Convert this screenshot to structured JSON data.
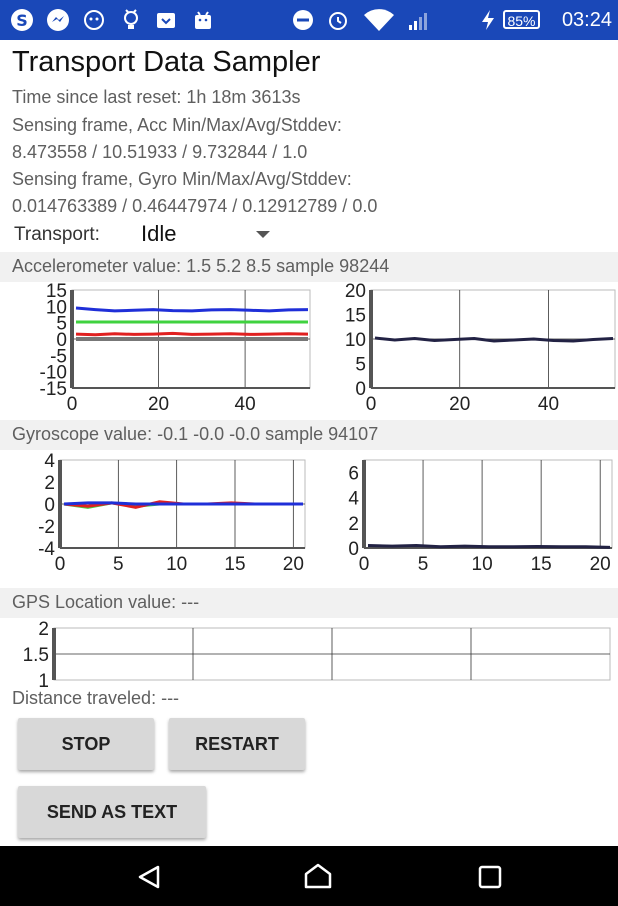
{
  "status_bar": {
    "battery": "85%",
    "time": "03:24",
    "icons": [
      "skype-icon",
      "messenger-icon",
      "cat-icon",
      "lightbulb-icon",
      "tray-icon",
      "bag-icon",
      "dnd-icon",
      "alarm-icon",
      "wifi-icon",
      "signal-icon",
      "charging-icon"
    ]
  },
  "app": {
    "title": "Transport Data Sampler",
    "time_since_reset": "Time since last reset: 1h 18m 3613s",
    "acc_header": "Sensing frame, Acc Min/Max/Avg/Stddev:",
    "acc_stats": "8.473558 /  10.51933 /  9.732844 /  1.0",
    "gyro_header": "Sensing frame, Gyro Min/Max/Avg/Stddev:",
    "gyro_stats": "0.014763389 / 0.46447974 / 0.12912789 / 0.0",
    "transport_label": "Transport:",
    "transport_value": "Idle",
    "acc_value": "Accelerometer value: 1.5 5.2 8.5   sample 98244",
    "gyro_value": "Gyroscope value: -0.1 -0.0 -0.0   sample 94107",
    "gps_value": "GPS Location value: ---",
    "distance": "Distance traveled: ---"
  },
  "buttons": {
    "stop": "STOP",
    "restart": "RESTART",
    "send": "SEND AS TEXT"
  },
  "chart_data": [
    {
      "type": "line",
      "name": "accelerometer-axes",
      "xlim": [
        0,
        55
      ],
      "ylim": [
        -15,
        15
      ],
      "xticks": [
        "0",
        "20",
        "40"
      ],
      "yticks": [
        "15",
        "10",
        "5",
        "0",
        "-5",
        "-10",
        "-15"
      ],
      "series": [
        {
          "color": "#1f2fd8",
          "values": [
            9.5,
            9,
            8.6,
            8.8,
            9,
            8.7,
            8.6,
            8.9,
            9,
            8.8,
            8.6,
            8.9,
            9
          ]
        },
        {
          "color": "#3fd23f",
          "values": [
            5.2,
            5.2,
            5.2,
            5.2,
            5.2,
            5.2,
            5.2,
            5.2,
            5.2,
            5.2,
            5.2,
            5.2,
            5.2
          ]
        },
        {
          "color": "#e02020",
          "values": [
            1.5,
            1.3,
            1.6,
            1.4,
            1.5,
            1.7,
            1.4,
            1.5,
            1.6,
            1.4,
            1.5,
            1.6,
            1.5
          ]
        },
        {
          "color": "#777777",
          "values": [
            0,
            0,
            0,
            0,
            0,
            0,
            0,
            0,
            0,
            0,
            0,
            0,
            0
          ]
        }
      ]
    },
    {
      "type": "line",
      "name": "accelerometer-magnitude",
      "xlim": [
        0,
        55
      ],
      "ylim": [
        0,
        20
      ],
      "xticks": [
        "0",
        "20",
        "40"
      ],
      "yticks": [
        "20",
        "15",
        "10",
        "5",
        "0"
      ],
      "series": [
        {
          "color": "#222244",
          "values": [
            10.2,
            9.8,
            10.1,
            9.7,
            9.9,
            10.1,
            9.6,
            9.8,
            10,
            9.7,
            9.6,
            9.9,
            10.1
          ]
        }
      ]
    },
    {
      "type": "line",
      "name": "gyroscope-axes",
      "xlim": [
        0,
        21
      ],
      "ylim": [
        -4,
        4
      ],
      "xticks": [
        "0",
        "5",
        "10",
        "15",
        "20"
      ],
      "yticks": [
        "4",
        "2",
        "0",
        "-2",
        "-4"
      ],
      "series": [
        {
          "color": "#3fd23f",
          "values": [
            0,
            -0.3,
            0.1,
            -0.2,
            0,
            0,
            0,
            0,
            0,
            0,
            0
          ]
        },
        {
          "color": "#e02020",
          "values": [
            0,
            -0.2,
            0.1,
            -0.3,
            0.2,
            0,
            0,
            0.1,
            0,
            0,
            0
          ]
        },
        {
          "color": "#1f2fd8",
          "values": [
            0,
            0.1,
            0.1,
            0,
            0,
            0,
            0,
            0,
            0,
            0,
            0
          ]
        }
      ]
    },
    {
      "type": "line",
      "name": "gyroscope-magnitude",
      "xlim": [
        0,
        21
      ],
      "ylim": [
        0,
        7
      ],
      "xticks": [
        "0",
        "5",
        "10",
        "15",
        "20"
      ],
      "yticks": [
        "6",
        "4",
        "2",
        "0"
      ],
      "series": [
        {
          "color": "#222244",
          "values": [
            0.2,
            0.15,
            0.2,
            0.1,
            0.15,
            0.1,
            0.1,
            0.12,
            0.1,
            0.1,
            0.05
          ]
        }
      ]
    },
    {
      "type": "line",
      "name": "gps",
      "ylim": [
        1,
        2
      ],
      "yticks": [
        "2",
        "1.5",
        "1"
      ],
      "series": []
    }
  ]
}
